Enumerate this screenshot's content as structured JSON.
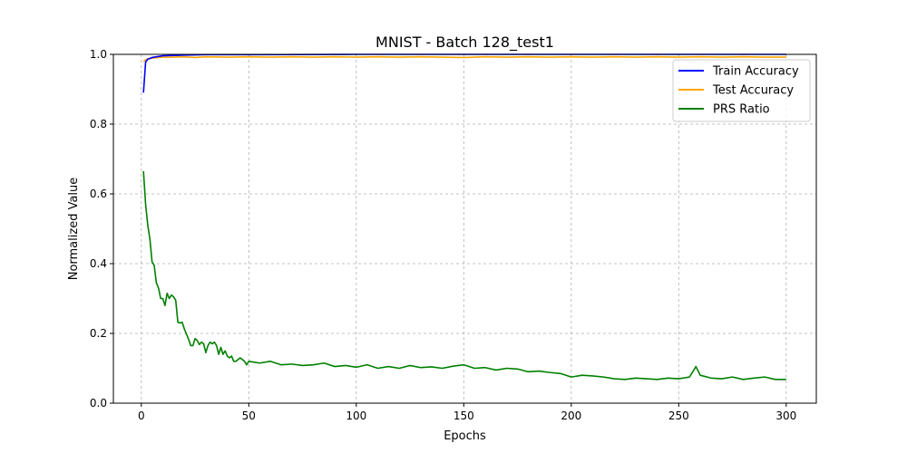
{
  "chart_data": {
    "type": "line",
    "title": "MNIST - Batch 128_test1",
    "xlabel": "Epochs",
    "ylabel": "Normalized Value",
    "xlim": [
      -13,
      314
    ],
    "ylim": [
      0.0,
      1.0
    ],
    "xticks": [
      0,
      50,
      100,
      150,
      200,
      250,
      300
    ],
    "yticks": [
      0.0,
      0.2,
      0.4,
      0.6,
      0.8,
      1.0
    ],
    "xtick_labels": [
      "0",
      "50",
      "100",
      "150",
      "200",
      "250",
      "300"
    ],
    "ytick_labels": [
      "0.0",
      "0.2",
      "0.4",
      "0.6",
      "0.8",
      "1.0"
    ],
    "grid": true,
    "legend_position": "top-right",
    "series": [
      {
        "name": "Train Accuracy",
        "color": "#0000ff",
        "x": [
          1,
          2,
          3,
          5,
          8,
          10,
          15,
          20,
          30,
          50,
          100,
          150,
          200,
          250,
          300
        ],
        "y": [
          0.89,
          0.978,
          0.986,
          0.991,
          0.994,
          0.996,
          0.997,
          0.998,
          0.999,
          0.999,
          1.0,
          1.0,
          1.0,
          1.0,
          1.0
        ]
      },
      {
        "name": "Test Accuracy",
        "color": "#ffa500",
        "x": [
          1,
          2,
          3,
          5,
          8,
          10,
          15,
          20,
          25,
          30,
          40,
          50,
          60,
          70,
          80,
          90,
          100,
          110,
          120,
          130,
          140,
          150,
          160,
          170,
          180,
          190,
          200,
          210,
          220,
          230,
          240,
          250,
          260,
          270,
          280,
          290,
          300
        ],
        "y": [
          0.979,
          0.985,
          0.987,
          0.989,
          0.991,
          0.992,
          0.992,
          0.993,
          0.991,
          0.993,
          0.992,
          0.993,
          0.992,
          0.993,
          0.992,
          0.993,
          0.992,
          0.993,
          0.992,
          0.993,
          0.992,
          0.991,
          0.993,
          0.992,
          0.993,
          0.992,
          0.993,
          0.992,
          0.993,
          0.992,
          0.993,
          0.992,
          0.993,
          0.992,
          0.993,
          0.992,
          0.992
        ]
      },
      {
        "name": "PRS Ratio",
        "color": "#008000",
        "x": [
          1,
          2,
          3,
          4,
          5,
          6,
          7,
          8,
          9,
          10,
          11,
          12,
          13,
          14,
          15,
          16,
          17,
          18,
          19,
          20,
          21,
          22,
          23,
          24,
          25,
          26,
          27,
          28,
          29,
          30,
          31,
          32,
          33,
          34,
          35,
          36,
          37,
          38,
          39,
          40,
          41,
          42,
          43,
          44,
          45,
          46,
          47,
          48,
          49,
          50,
          55,
          60,
          65,
          70,
          75,
          80,
          85,
          90,
          95,
          100,
          105,
          110,
          115,
          120,
          125,
          130,
          135,
          140,
          145,
          150,
          155,
          160,
          165,
          170,
          175,
          180,
          185,
          190,
          195,
          200,
          205,
          210,
          215,
          220,
          225,
          230,
          235,
          240,
          245,
          250,
          255,
          258,
          260,
          265,
          270,
          275,
          280,
          285,
          290,
          295,
          300
        ],
        "y": [
          0.665,
          0.57,
          0.51,
          0.47,
          0.405,
          0.395,
          0.345,
          0.33,
          0.3,
          0.3,
          0.28,
          0.315,
          0.3,
          0.31,
          0.305,
          0.295,
          0.232,
          0.23,
          0.232,
          0.213,
          0.198,
          0.183,
          0.165,
          0.165,
          0.185,
          0.18,
          0.168,
          0.175,
          0.17,
          0.145,
          0.165,
          0.175,
          0.17,
          0.175,
          0.165,
          0.14,
          0.16,
          0.14,
          0.15,
          0.135,
          0.13,
          0.135,
          0.12,
          0.12,
          0.125,
          0.13,
          0.125,
          0.12,
          0.11,
          0.12,
          0.115,
          0.12,
          0.11,
          0.112,
          0.108,
          0.11,
          0.115,
          0.105,
          0.108,
          0.103,
          0.11,
          0.1,
          0.105,
          0.1,
          0.108,
          0.102,
          0.104,
          0.1,
          0.106,
          0.11,
          0.1,
          0.102,
          0.095,
          0.1,
          0.098,
          0.09,
          0.092,
          0.088,
          0.085,
          0.075,
          0.08,
          0.078,
          0.075,
          0.07,
          0.068,
          0.072,
          0.07,
          0.068,
          0.072,
          0.07,
          0.075,
          0.105,
          0.08,
          0.072,
          0.07,
          0.075,
          0.068,
          0.072,
          0.075,
          0.068,
          0.068
        ]
      }
    ]
  }
}
